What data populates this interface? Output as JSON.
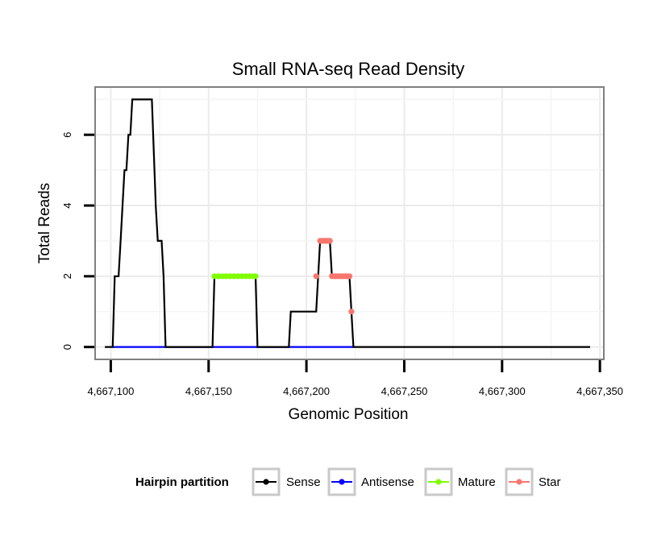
{
  "chart_data": {
    "type": "line",
    "title": "Small RNA-seq Read Density",
    "xlabel": "Genomic Position",
    "ylabel": "Total Reads",
    "xlim": [
      4667092,
      4667352
    ],
    "ylim": [
      -0.35,
      7.35
    ],
    "x_ticks": [
      4667100,
      4667150,
      4667200,
      4667250,
      4667300,
      4667350
    ],
    "x_tick_labels": [
      "4,667,100",
      "4,667,150",
      "4,667,200",
      "4,667,250",
      "4,667,300",
      "4,667,350"
    ],
    "y_ticks": [
      0,
      2,
      4,
      6
    ],
    "y_tick_labels": [
      "0",
      "2",
      "4",
      "6"
    ],
    "grid": true,
    "legend": {
      "title": "Hairpin partition",
      "position": "bottom",
      "entries": [
        "Sense",
        "Antisense",
        "Mature",
        "Star"
      ]
    },
    "series": [
      {
        "name": "Sense",
        "color": "#000000",
        "style": "line",
        "points": [
          [
            4667097,
            0
          ],
          [
            4667101,
            0
          ],
          [
            4667102,
            2
          ],
          [
            4667104,
            2
          ],
          [
            4667105,
            3
          ],
          [
            4667107,
            5
          ],
          [
            4667108,
            5
          ],
          [
            4667109,
            6
          ],
          [
            4667110,
            6
          ],
          [
            4667111,
            7
          ],
          [
            4667121,
            7
          ],
          [
            4667123,
            4
          ],
          [
            4667124,
            3
          ],
          [
            4667126,
            3
          ],
          [
            4667127,
            2
          ],
          [
            4667128,
            0
          ],
          [
            4667152,
            0
          ],
          [
            4667153,
            2
          ],
          [
            4667174,
            2
          ],
          [
            4667175,
            0
          ],
          [
            4667191,
            0
          ],
          [
            4667192,
            1
          ],
          [
            4667205,
            1
          ],
          [
            4667207,
            3
          ],
          [
            4667212,
            3
          ],
          [
            4667213,
            2
          ],
          [
            4667222,
            2
          ],
          [
            4667223,
            1
          ],
          [
            4667224,
            0
          ],
          [
            4667345,
            0
          ]
        ]
      },
      {
        "name": "Antisense",
        "color": "#0000ff",
        "style": "line",
        "points": [
          [
            4667101,
            0
          ],
          [
            4667224,
            0
          ]
        ]
      },
      {
        "name": "Mature",
        "color": "#7fff00",
        "style": "points",
        "points": [
          [
            4667153,
            2
          ],
          [
            4667155,
            2
          ],
          [
            4667157,
            2
          ],
          [
            4667159,
            2
          ],
          [
            4667161,
            2
          ],
          [
            4667163,
            2
          ],
          [
            4667165,
            2
          ],
          [
            4667167,
            2
          ],
          [
            4667169,
            2
          ],
          [
            4667171,
            2
          ],
          [
            4667173,
            2
          ],
          [
            4667174,
            2
          ]
        ]
      },
      {
        "name": "Star",
        "color": "#f8766d",
        "style": "points",
        "points": [
          [
            4667205,
            2
          ],
          [
            4667207,
            3
          ],
          [
            4667208,
            3
          ],
          [
            4667209,
            3
          ],
          [
            4667210,
            3
          ],
          [
            4667211,
            3
          ],
          [
            4667212,
            3
          ],
          [
            4667213,
            2
          ],
          [
            4667214,
            2
          ],
          [
            4667215,
            2
          ],
          [
            4667216,
            2
          ],
          [
            4667217,
            2
          ],
          [
            4667218,
            2
          ],
          [
            4667219,
            2
          ],
          [
            4667220,
            2
          ],
          [
            4667221,
            2
          ],
          [
            4667222,
            2
          ],
          [
            4667223,
            1
          ]
        ]
      }
    ]
  }
}
